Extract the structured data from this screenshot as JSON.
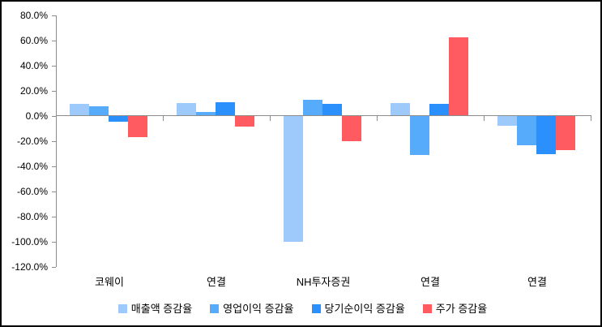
{
  "chart_data": {
    "type": "bar",
    "categories": [
      "코웨이",
      "연결",
      "NH투자증권",
      "연결",
      "연결"
    ],
    "series": [
      {
        "name": "매출액 증감율",
        "color": "#9DC9FB",
        "values": [
          9,
          10,
          -100,
          9.5,
          -8
        ]
      },
      {
        "name": "영업이익 증감율",
        "color": "#57ABFB",
        "values": [
          7,
          2.5,
          12,
          -31,
          -23
        ]
      },
      {
        "name": "당기순이익 증감율",
        "color": "#2B90FB",
        "values": [
          -4.5,
          10.5,
          9,
          9,
          -30
        ]
      },
      {
        "name": "주가 증감율",
        "color": "#FF5B61",
        "values": [
          -17,
          -8.5,
          -20,
          62,
          -27
        ]
      }
    ],
    "ylim": [
      -120,
      80
    ],
    "ytick_step": 20,
    "ytick_suffix": "%",
    "ytick_labels": [
      "80.0%",
      "60.0%",
      "40.0%",
      "20.0%",
      "0.0%",
      "-20.0%",
      "-40.0%",
      "-60.0%",
      "-80.0%",
      "-100.0%",
      "-120.0%"
    ],
    "grid": false,
    "legend_position": "bottom",
    "colors": {
      "axis": "#8C8C8C",
      "text": "#000000",
      "background": "#FFFFFF",
      "border": "#000000"
    }
  }
}
